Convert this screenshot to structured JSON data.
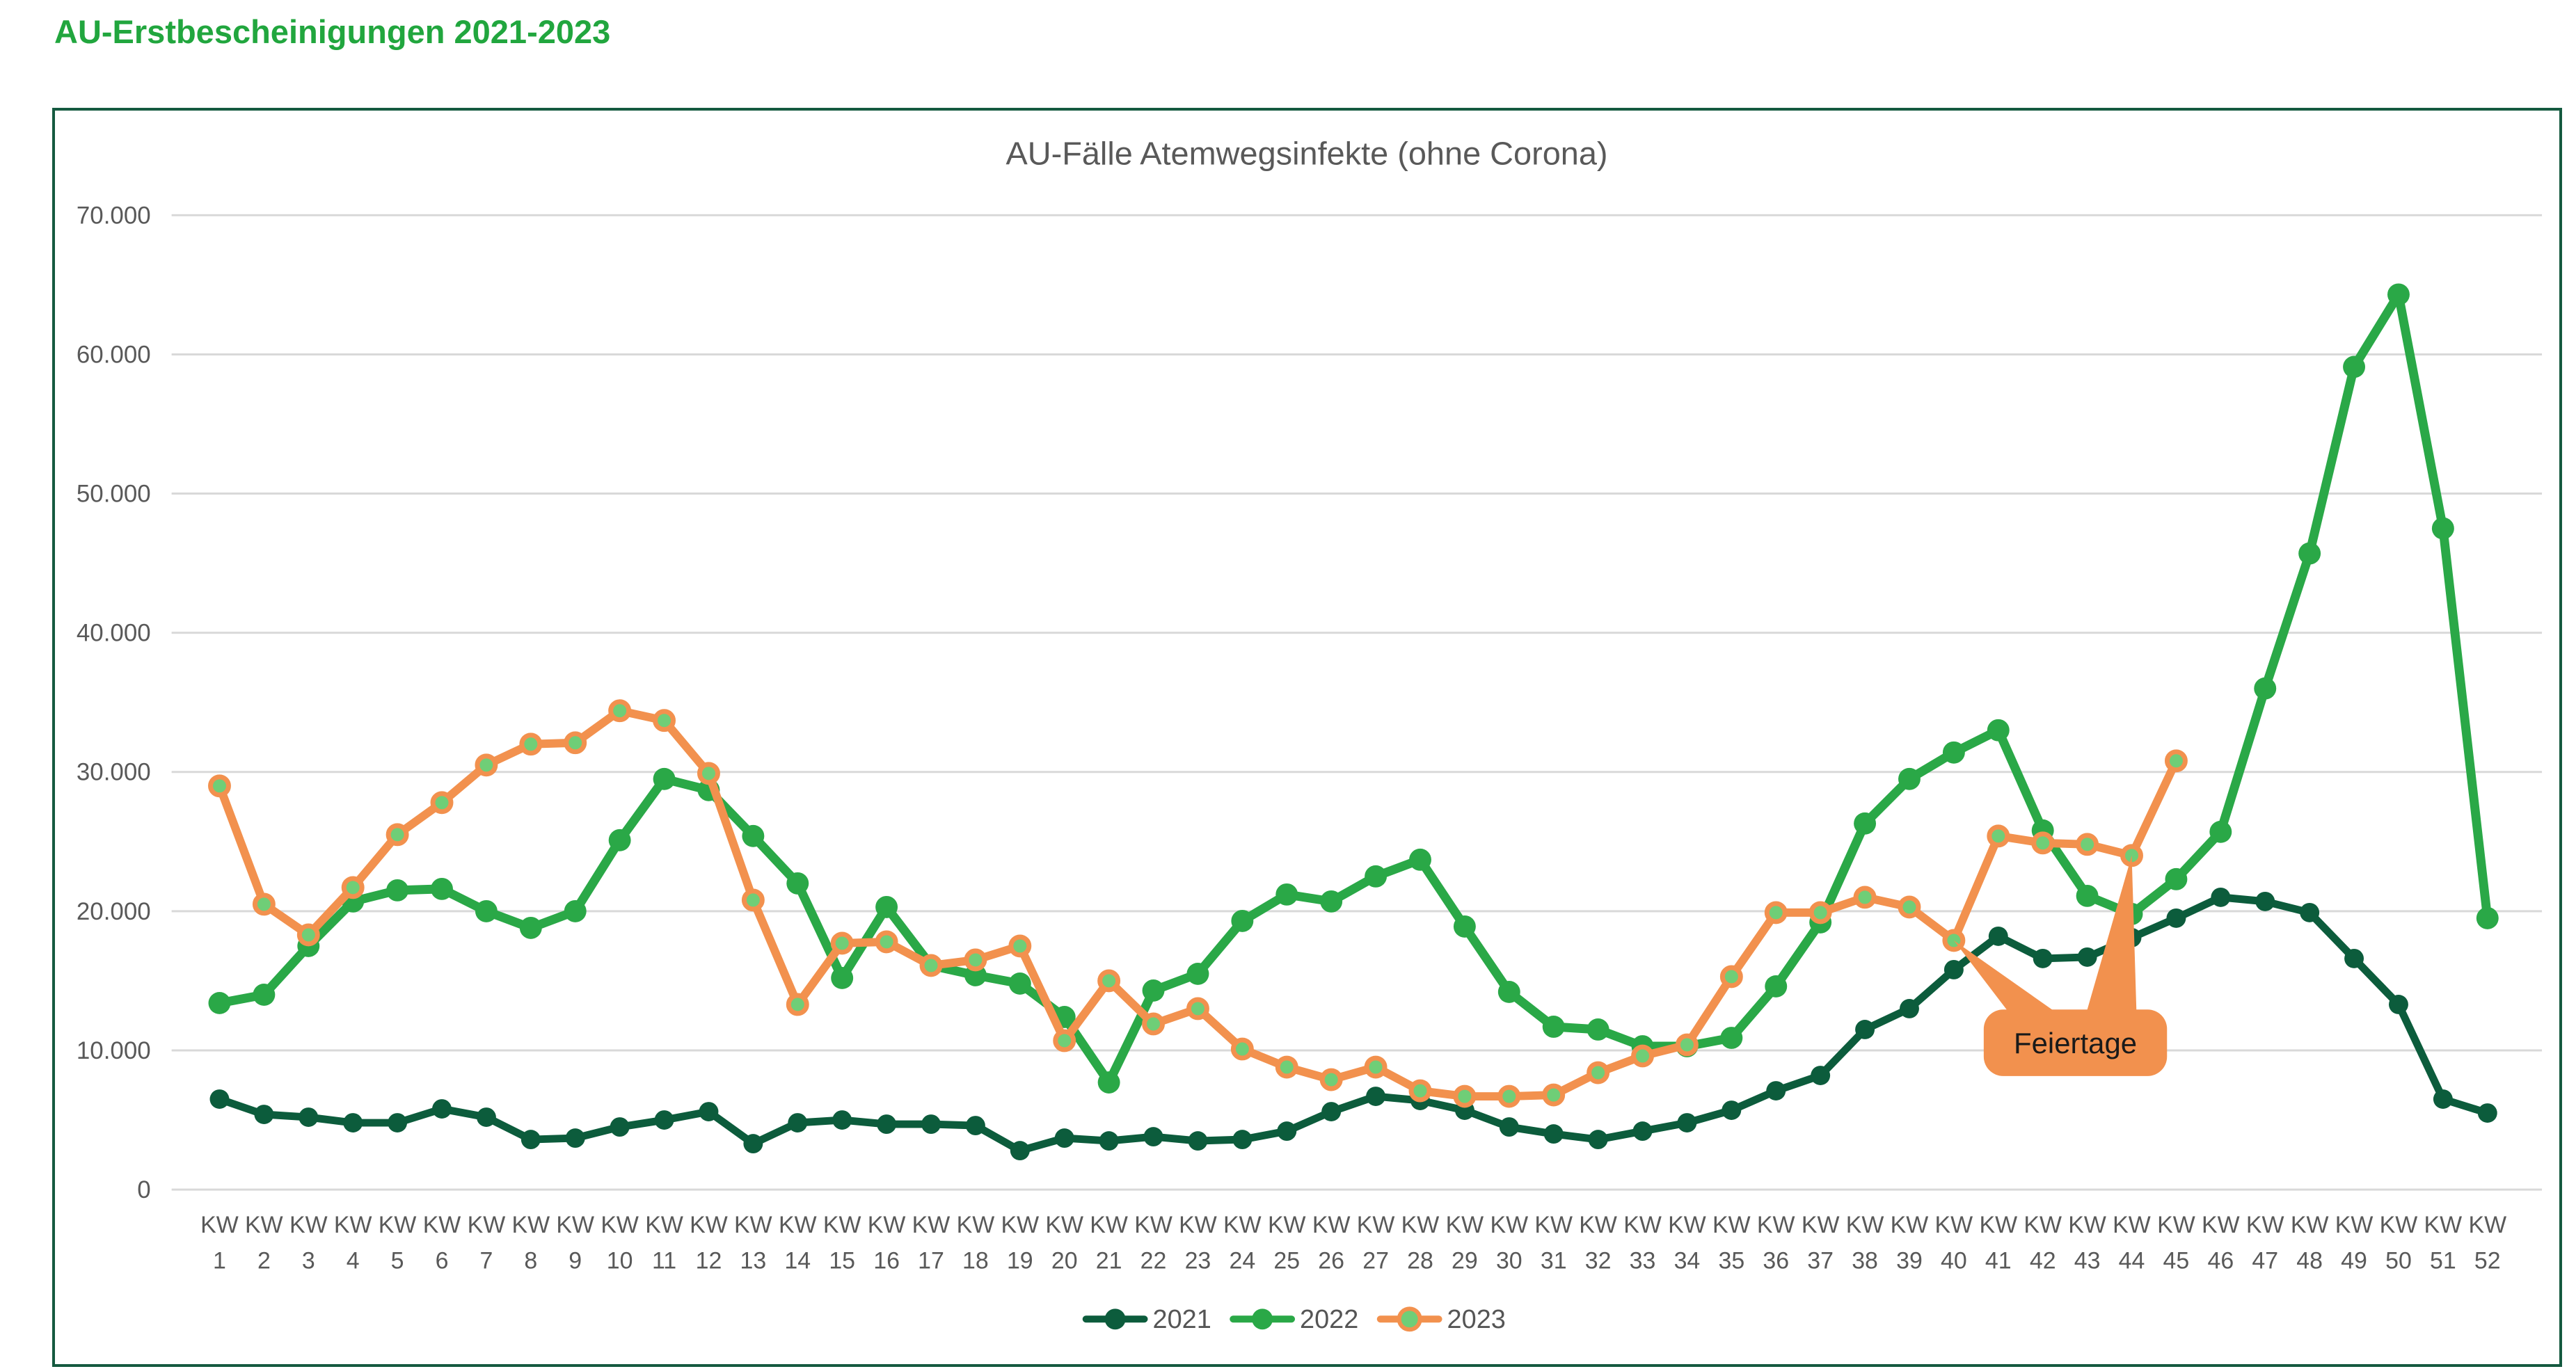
{
  "page": {
    "title": "AU-Erstbescheinigungen 2021-2023"
  },
  "colors": {
    "header_green": "#21a63e",
    "box_border": "#155a40",
    "title_gray": "#595959",
    "axis_label_gray": "#595959",
    "gridline": "#d9d9d9",
    "series_2021": "#0c5c3c",
    "series_2022": "#2aa847",
    "series_2023": "#f2914e",
    "marker_2023_fill": "#6fce77",
    "annotation_fill": "#f2914e",
    "annotation_text": "#1a1a1a",
    "legend_text": "#555555"
  },
  "chart_data": {
    "type": "line",
    "title": "AU-Fälle Atemwegsinfekte (ohne Corona)",
    "xlabel": "",
    "ylabel": "",
    "ylim": [
      0,
      70000
    ],
    "ytick_step": 10000,
    "ytick_labels": [
      "0",
      "10.000",
      "20.000",
      "30.000",
      "40.000",
      "50.000",
      "60.000",
      "70.000"
    ],
    "grid": true,
    "legend_position": "bottom",
    "x_label_prefix": "KW",
    "categories": [
      1,
      2,
      3,
      4,
      5,
      6,
      7,
      8,
      9,
      10,
      11,
      12,
      13,
      14,
      15,
      16,
      17,
      18,
      19,
      20,
      21,
      22,
      23,
      24,
      25,
      26,
      27,
      28,
      29,
      30,
      31,
      32,
      33,
      34,
      35,
      36,
      37,
      38,
      39,
      40,
      41,
      42,
      43,
      44,
      45,
      46,
      47,
      48,
      49,
      50,
      51,
      52
    ],
    "series": [
      {
        "name": "2021",
        "color": "#0c5c3c",
        "marker_fill": "#0c5c3c",
        "marker_stroke": "#0c5c3c",
        "values": [
          6500,
          5400,
          5200,
          4800,
          4800,
          5800,
          5200,
          3600,
          3700,
          4500,
          5000,
          5600,
          3300,
          4800,
          5000,
          4700,
          4700,
          4600,
          2800,
          3700,
          3500,
          3800,
          3500,
          3600,
          4200,
          5600,
          6700,
          6400,
          5700,
          4500,
          4000,
          3600,
          4200,
          4800,
          5700,
          7100,
          8200,
          11500,
          13000,
          15800,
          18200,
          16600,
          16700,
          18100,
          19500,
          21000,
          20700,
          19900,
          16600,
          13300,
          6500,
          5500
        ]
      },
      {
        "name": "2022",
        "color": "#2aa847",
        "marker_fill": "#2aa847",
        "marker_stroke": "#2aa847",
        "values": [
          13400,
          14000,
          17500,
          20700,
          21500,
          21600,
          20000,
          18800,
          20000,
          25100,
          29500,
          28700,
          25400,
          22000,
          15200,
          20300,
          16100,
          15400,
          14800,
          12400,
          7700,
          14300,
          15500,
          19300,
          21200,
          20700,
          22500,
          23700,
          18900,
          14200,
          11700,
          11500,
          10300,
          10300,
          10900,
          14600,
          19200,
          26300,
          29500,
          31400,
          33000,
          25800,
          21100,
          19800,
          22300,
          25700,
          36000,
          45700,
          59100,
          64300,
          47500,
          19500
        ]
      },
      {
        "name": "2023",
        "color": "#f2914e",
        "marker_fill": "#6fce77",
        "marker_stroke": "#f2914e",
        "values": [
          29000,
          20500,
          18300,
          21700,
          25500,
          27800,
          30500,
          32000,
          32100,
          34400,
          33700,
          29900,
          20800,
          13300,
          17700,
          17800,
          16100,
          16500,
          17500,
          10700,
          15000,
          11900,
          13000,
          10100,
          8800,
          7900,
          8800,
          7100,
          6700,
          6700,
          6800,
          8400,
          9600,
          10400,
          15300,
          19900,
          19900,
          21000,
          20300,
          17900,
          25400,
          24900,
          24800,
          24000,
          30800
        ]
      }
    ],
    "annotation": {
      "text": "Feiertage",
      "series": "2023",
      "target_indices": [
        39,
        43
      ]
    }
  }
}
